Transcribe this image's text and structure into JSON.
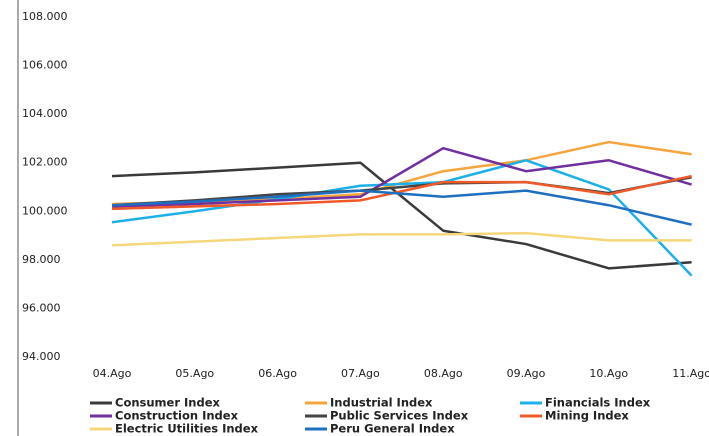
{
  "chart_data": {
    "type": "line",
    "categories": [
      "04.Ago",
      "05.Ago",
      "06.Ago",
      "07.Ago",
      "08.Ago",
      "09.Ago",
      "10.Ago",
      "11.Ago"
    ],
    "ylim": [
      94,
      108
    ],
    "yticks": [
      {
        "value": 94,
        "label": "94.000"
      },
      {
        "value": 96,
        "label": "96.000"
      },
      {
        "value": 98,
        "label": "98.000"
      },
      {
        "value": 100,
        "label": "100.000"
      },
      {
        "value": 102,
        "label": "102.000"
      },
      {
        "value": 104,
        "label": "104.000"
      },
      {
        "value": 106,
        "label": "106.000"
      },
      {
        "value": 108,
        "label": "108.000"
      }
    ],
    "grid": false,
    "legend": "bottom",
    "series": [
      {
        "name": "Consumer Index",
        "color": "#3a3a3a",
        "values": [
          101.45,
          101.6,
          101.8,
          102.0,
          99.2,
          98.65,
          97.65,
          97.9
        ]
      },
      {
        "name": "Industrial Index",
        "color": "#f4a53c",
        "values": [
          100.3,
          100.4,
          100.5,
          100.7,
          101.65,
          102.1,
          102.85,
          102.35
        ]
      },
      {
        "name": "Financials Index",
        "color": "#1cb0e8",
        "values": [
          99.55,
          100.0,
          100.5,
          101.05,
          101.2,
          102.1,
          100.9,
          97.35
        ]
      },
      {
        "name": "Construction Index",
        "color": "#7030a0",
        "values": [
          100.2,
          100.3,
          100.45,
          100.6,
          102.6,
          101.65,
          102.1,
          101.1
        ]
      },
      {
        "name": "Public Services Index",
        "color": "#444444",
        "values": [
          100.25,
          100.45,
          100.7,
          100.85,
          101.15,
          101.2,
          100.75,
          101.4
        ]
      },
      {
        "name": "Mining Index",
        "color": "#f05a28",
        "values": [
          100.1,
          100.2,
          100.3,
          100.45,
          101.2,
          101.2,
          100.7,
          101.45
        ]
      },
      {
        "name": "Electric Utilities Index",
        "color": "#f5d77a",
        "values": [
          98.6,
          98.75,
          98.9,
          99.05,
          99.05,
          99.1,
          98.8,
          98.8
        ]
      },
      {
        "name": "Peru General Index",
        "color": "#1f6fc0",
        "values": [
          100.25,
          100.4,
          100.6,
          100.85,
          100.6,
          100.85,
          100.25,
          99.45
        ]
      }
    ]
  }
}
